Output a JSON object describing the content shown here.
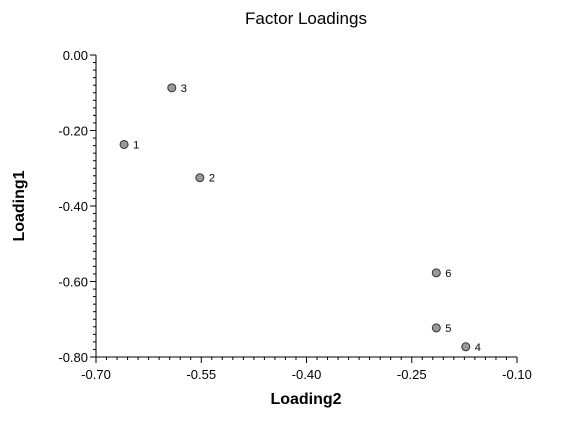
{
  "chart_data": {
    "type": "scatter",
    "title": "Factor Loadings",
    "xlabel": "Loading2",
    "ylabel": "Loading1",
    "xlim": [
      -0.7,
      -0.1
    ],
    "ylim": [
      -0.8,
      0.0
    ],
    "x_ticks": [
      -0.7,
      -0.55,
      -0.4,
      -0.25,
      -0.1
    ],
    "x_tick_labels": [
      "-0.70",
      "-0.55",
      "-0.40",
      "-0.25",
      "-0.10"
    ],
    "y_ticks": [
      0.0,
      -0.2,
      -0.4,
      -0.6,
      -0.8
    ],
    "y_tick_labels": [
      "0.00",
      "-0.20",
      "-0.40",
      "-0.60",
      "-0.80"
    ],
    "grid": false,
    "legend": "none",
    "marker_color": "#999999",
    "points": [
      {
        "label": "1",
        "x": -0.66,
        "y": -0.237
      },
      {
        "label": "2",
        "x": -0.552,
        "y": -0.325
      },
      {
        "label": "3",
        "x": -0.592,
        "y": -0.087
      },
      {
        "label": "4",
        "x": -0.173,
        "y": -0.773
      },
      {
        "label": "5",
        "x": -0.215,
        "y": -0.723
      },
      {
        "label": "6",
        "x": -0.215,
        "y": -0.577
      }
    ]
  }
}
